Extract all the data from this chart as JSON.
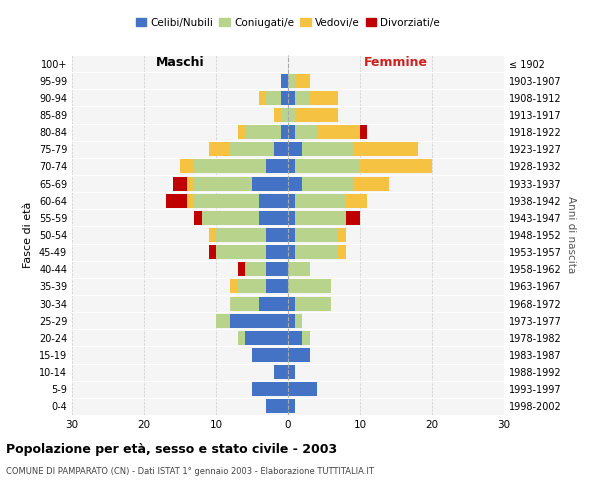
{
  "age_groups": [
    "100+",
    "95-99",
    "90-94",
    "85-89",
    "80-84",
    "75-79",
    "70-74",
    "65-69",
    "60-64",
    "55-59",
    "50-54",
    "45-49",
    "40-44",
    "35-39",
    "30-34",
    "25-29",
    "20-24",
    "15-19",
    "10-14",
    "5-9",
    "0-4"
  ],
  "birth_years": [
    "≤ 1902",
    "1903-1907",
    "1908-1912",
    "1913-1917",
    "1918-1922",
    "1923-1927",
    "1928-1932",
    "1933-1937",
    "1938-1942",
    "1943-1947",
    "1948-1952",
    "1953-1957",
    "1958-1962",
    "1963-1967",
    "1968-1972",
    "1973-1977",
    "1978-1982",
    "1983-1987",
    "1988-1992",
    "1993-1997",
    "1998-2002"
  ],
  "males": {
    "celibi": [
      0,
      1,
      1,
      0,
      1,
      2,
      3,
      5,
      4,
      4,
      3,
      3,
      3,
      3,
      4,
      8,
      6,
      5,
      2,
      5,
      3
    ],
    "coniugati": [
      0,
      0,
      2,
      1,
      5,
      6,
      10,
      8,
      9,
      8,
      7,
      7,
      3,
      4,
      4,
      2,
      1,
      0,
      0,
      0,
      0
    ],
    "vedovi": [
      0,
      0,
      1,
      1,
      1,
      3,
      2,
      1,
      1,
      0,
      1,
      0,
      0,
      1,
      0,
      0,
      0,
      0,
      0,
      0,
      0
    ],
    "divorziati": [
      0,
      0,
      0,
      0,
      0,
      0,
      0,
      2,
      3,
      1,
      0,
      1,
      1,
      0,
      0,
      0,
      0,
      0,
      0,
      0,
      0
    ]
  },
  "females": {
    "nubili": [
      0,
      0,
      1,
      0,
      1,
      2,
      1,
      2,
      1,
      1,
      1,
      1,
      0,
      0,
      1,
      1,
      2,
      3,
      1,
      4,
      1
    ],
    "coniugate": [
      0,
      1,
      2,
      1,
      3,
      7,
      9,
      7,
      7,
      7,
      6,
      6,
      3,
      6,
      5,
      1,
      1,
      0,
      0,
      0,
      0
    ],
    "vedove": [
      0,
      2,
      4,
      6,
      6,
      9,
      10,
      5,
      3,
      0,
      1,
      1,
      0,
      0,
      0,
      0,
      0,
      0,
      0,
      0,
      0
    ],
    "divorziate": [
      0,
      0,
      0,
      0,
      1,
      0,
      0,
      0,
      0,
      2,
      0,
      0,
      0,
      0,
      0,
      0,
      0,
      0,
      0,
      0,
      0
    ]
  },
  "color_celibi": "#4472c4",
  "color_coniugati": "#b8d48c",
  "color_vedovi": "#f5c242",
  "color_divorziati": "#c00000",
  "title": "Popolazione per età, sesso e stato civile - 2003",
  "subtitle": "COMUNE DI PAMPARATO (CN) - Dati ISTAT 1° gennaio 2003 - Elaborazione TUTTITALIA.IT",
  "label_maschi": "Maschi",
  "label_femmine": "Femmine",
  "ylabel_left": "Fasce di età",
  "ylabel_right": "Anni di nascita",
  "xlim": 30,
  "bg_color": "#f5f5f5"
}
